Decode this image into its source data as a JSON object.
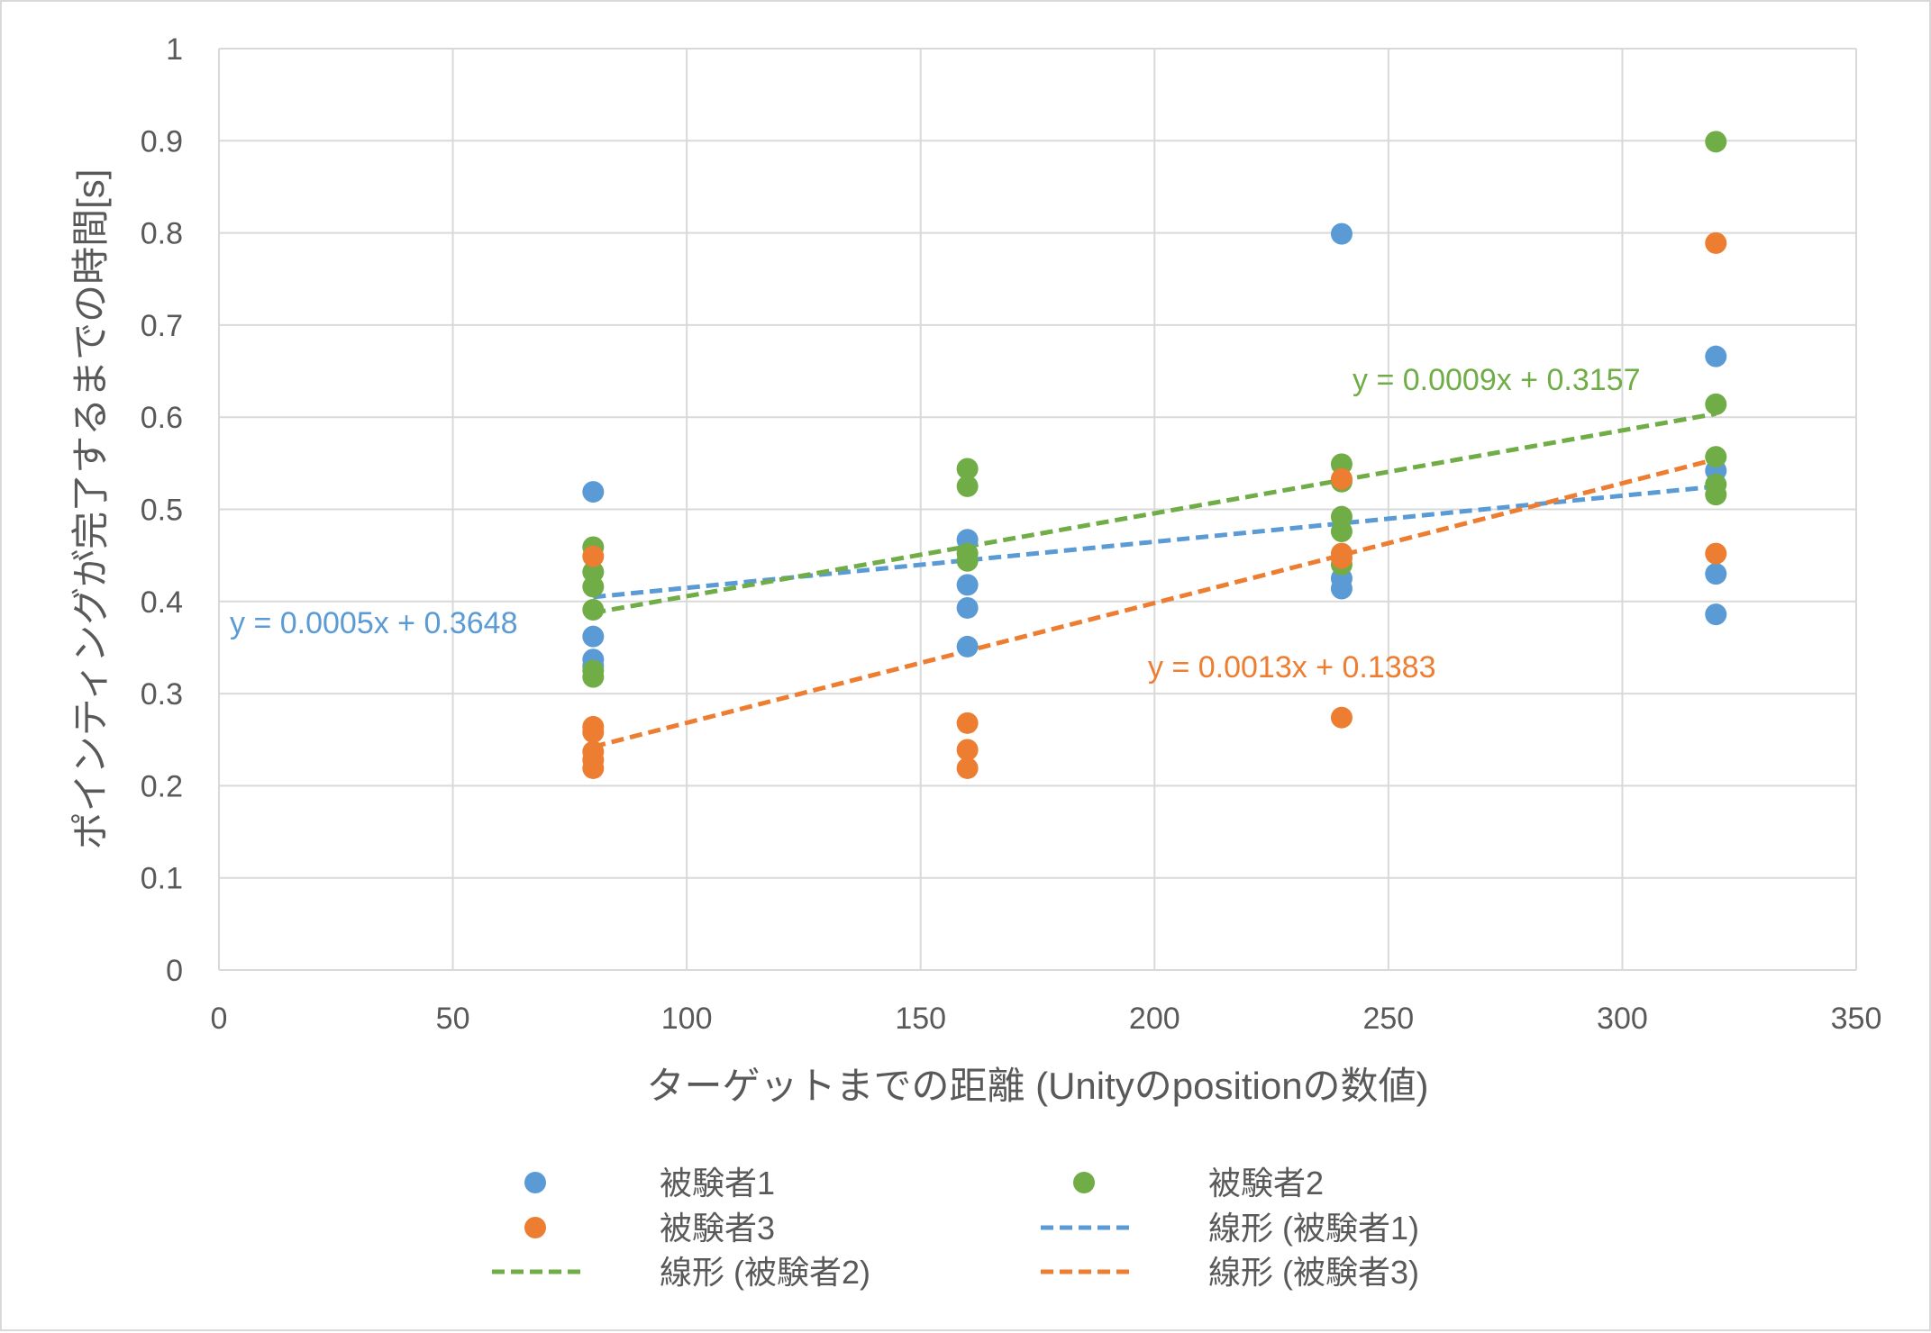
{
  "chart_data": {
    "type": "scatter",
    "xlabel": "ターゲットまでの距離 (Unityのpositionの数値)",
    "ylabel": "ポインティングが完了するまでの時間[s]",
    "xlim": [
      0,
      350
    ],
    "ylim": [
      0,
      1
    ],
    "x_ticks": [
      0,
      50,
      100,
      150,
      200,
      250,
      300,
      350
    ],
    "y_ticks": [
      0,
      0.1,
      0.2,
      0.3,
      0.4,
      0.5,
      0.6,
      0.7,
      0.8,
      0.9,
      1
    ],
    "x_tick_labels": [
      "0",
      "50",
      "100",
      "150",
      "200",
      "250",
      "300",
      "350"
    ],
    "y_tick_labels": [
      "0",
      "0.1",
      "0.2",
      "0.3",
      "0.4",
      "0.5",
      "0.6",
      "0.7",
      "0.8",
      "0.9",
      "1"
    ],
    "grid": true,
    "legend_position": "bottom",
    "series": [
      {
        "name": "被験者1",
        "color": "#5b9bd5",
        "points": [
          [
            80,
            0.519
          ],
          [
            80,
            0.362
          ],
          [
            80,
            0.337
          ],
          [
            80,
            0.33
          ],
          [
            160,
            0.467
          ],
          [
            160,
            0.418
          ],
          [
            160,
            0.393
          ],
          [
            160,
            0.351
          ],
          [
            240,
            0.799
          ],
          [
            240,
            0.425
          ],
          [
            240,
            0.414
          ],
          [
            320,
            0.666
          ],
          [
            320,
            0.542
          ],
          [
            320,
            0.43
          ],
          [
            320,
            0.386
          ]
        ],
        "trend": {
          "name": "線形 (被験者1)",
          "slope": 0.0005,
          "intercept": 0.3648,
          "x_range": [
            80,
            320
          ],
          "equation": "y = 0.0005x + 0.3648"
        }
      },
      {
        "name": "被験者2",
        "color": "#70ad47",
        "points": [
          [
            80,
            0.459
          ],
          [
            80,
            0.432
          ],
          [
            80,
            0.416
          ],
          [
            80,
            0.391
          ],
          [
            80,
            0.325
          ],
          [
            80,
            0.318
          ],
          [
            160,
            0.544
          ],
          [
            160,
            0.525
          ],
          [
            160,
            0.452
          ],
          [
            160,
            0.444
          ],
          [
            240,
            0.549
          ],
          [
            240,
            0.53
          ],
          [
            240,
            0.492
          ],
          [
            240,
            0.476
          ],
          [
            240,
            0.44
          ],
          [
            320,
            0.899
          ],
          [
            320,
            0.614
          ],
          [
            320,
            0.557
          ],
          [
            320,
            0.527
          ],
          [
            320,
            0.516
          ]
        ],
        "trend": {
          "name": "線形 (被験者2)",
          "slope": 0.0009,
          "intercept": 0.3157,
          "x_range": [
            80,
            320
          ],
          "equation": "y = 0.0009x + 0.3157"
        }
      },
      {
        "name": "被験者3",
        "color": "#ed7d31",
        "points": [
          [
            80,
            0.449
          ],
          [
            80,
            0.264
          ],
          [
            80,
            0.258
          ],
          [
            80,
            0.237
          ],
          [
            80,
            0.228
          ],
          [
            80,
            0.219
          ],
          [
            160,
            0.268
          ],
          [
            160,
            0.239
          ],
          [
            160,
            0.219
          ],
          [
            240,
            0.533
          ],
          [
            240,
            0.452
          ],
          [
            240,
            0.447
          ],
          [
            240,
            0.274
          ],
          [
            320,
            0.789
          ],
          [
            320,
            0.452
          ]
        ],
        "trend": {
          "name": "線形 (被験者3)",
          "slope": 0.0013,
          "intercept": 0.1383,
          "x_range": [
            80,
            320
          ],
          "equation": "y = 0.0013x + 0.1383"
        }
      }
    ],
    "legend": [
      {
        "label": "被験者1",
        "kind": "marker",
        "color": "#5b9bd5"
      },
      {
        "label": "被験者2",
        "kind": "marker",
        "color": "#70ad47"
      },
      {
        "label": "被験者3",
        "kind": "marker",
        "color": "#ed7d31"
      },
      {
        "label": "線形 (被験者1)",
        "kind": "dash",
        "color": "#5b9bd5"
      },
      {
        "label": "線形 (被験者2)",
        "kind": "dash",
        "color": "#70ad47"
      },
      {
        "label": "線形 (被験者3)",
        "kind": "dash",
        "color": "#ed7d31"
      }
    ]
  }
}
